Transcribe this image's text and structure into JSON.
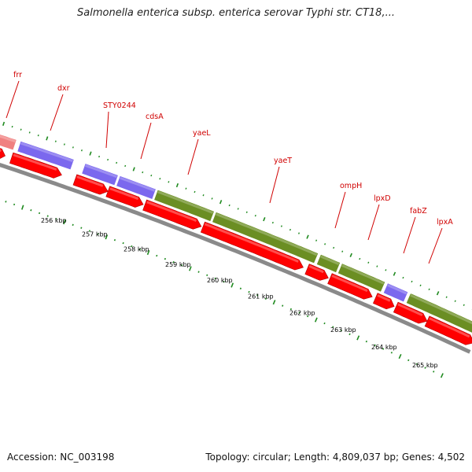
{
  "title": "Salmonella enterica subsp. enterica serovar Typhi str. CT18,...",
  "footer": {
    "accession": "Accession: NC_003198",
    "topology": "Topology: circular; Length: 4,809,037 bp; Genes: 4,502"
  },
  "colors": {
    "backbone": "#8a8a8a",
    "cds_arrow": "#ff0000",
    "gene_label": "#d00000",
    "tick": "#1f8a1f",
    "gene_pink": "#f08080",
    "gene_purple": "#7b68ee",
    "gene_olive": "#6b8e23"
  },
  "genes": [
    {
      "name": "frr",
      "color": "#f08080"
    },
    {
      "name": "dxr",
      "color": "#7b68ee"
    },
    {
      "name": "STY0244",
      "color": "#7b68ee"
    },
    {
      "name": "cdsA",
      "color": "#7b68ee"
    },
    {
      "name": "yaeL",
      "color": "#6b8e23"
    },
    {
      "name": "yaeT",
      "color": "#6b8e23"
    },
    {
      "name": "ompH",
      "color": "#6b8e23"
    },
    {
      "name": "lpxD",
      "color": "#6b8e23"
    },
    {
      "name": "fabZ",
      "color": "#7b68ee"
    },
    {
      "name": "lpxA",
      "color": "#6b8e23"
    }
  ],
  "scale_labels": [
    "256 kbp",
    "257 kbp",
    "258 kbp",
    "259 kbp",
    "260 kbp",
    "261 kbp",
    "262 kbp",
    "263 kbp",
    "264 kbp",
    "265 kbp"
  ]
}
